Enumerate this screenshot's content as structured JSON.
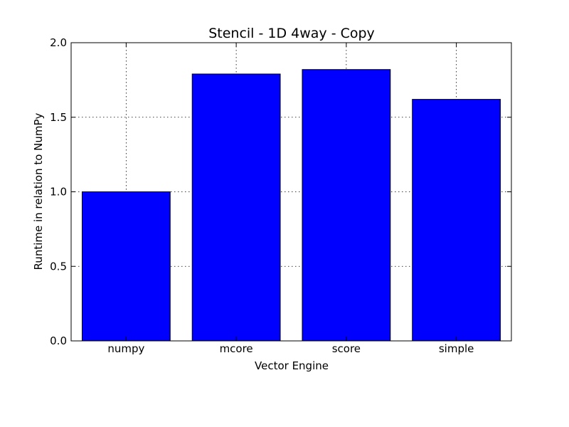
{
  "chart_data": {
    "type": "bar",
    "title": "Stencil - 1D 4way - Copy",
    "xlabel": "Vector Engine",
    "ylabel": "Runtime in relation to NumPy",
    "categories": [
      "numpy",
      "mcore",
      "score",
      "simple"
    ],
    "values": [
      1.0,
      1.79,
      1.82,
      1.62
    ],
    "ylim": [
      0,
      2.0
    ],
    "yticks": [
      "0.0",
      "0.5",
      "1.0",
      "1.5",
      "2.0"
    ],
    "grid": true,
    "bar_color": "#0000ff"
  }
}
